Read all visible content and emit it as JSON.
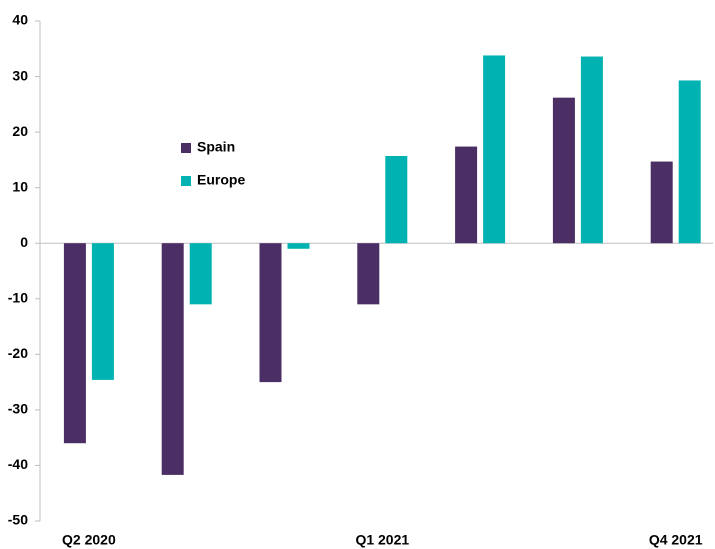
{
  "chart_data": {
    "type": "bar",
    "categories": [
      "Q2 2020",
      null,
      null,
      "Q1 2021",
      null,
      null,
      "Q4 2021"
    ],
    "series": [
      {
        "name": "Spain",
        "color": "#4b2e63",
        "values": [
          -36,
          -41.7,
          -25,
          -11,
          17.4,
          26.2,
          14.7
        ]
      },
      {
        "name": "Europe",
        "color": "#00b2b2",
        "values": [
          -24.6,
          -11,
          -1,
          15.7,
          33.8,
          33.6,
          29.3
        ]
      }
    ],
    "ylim": [
      -50,
      40
    ],
    "yticks": [
      -50,
      -40,
      -30,
      -20,
      -10,
      0,
      10,
      20,
      30,
      40
    ],
    "grid": false
  }
}
